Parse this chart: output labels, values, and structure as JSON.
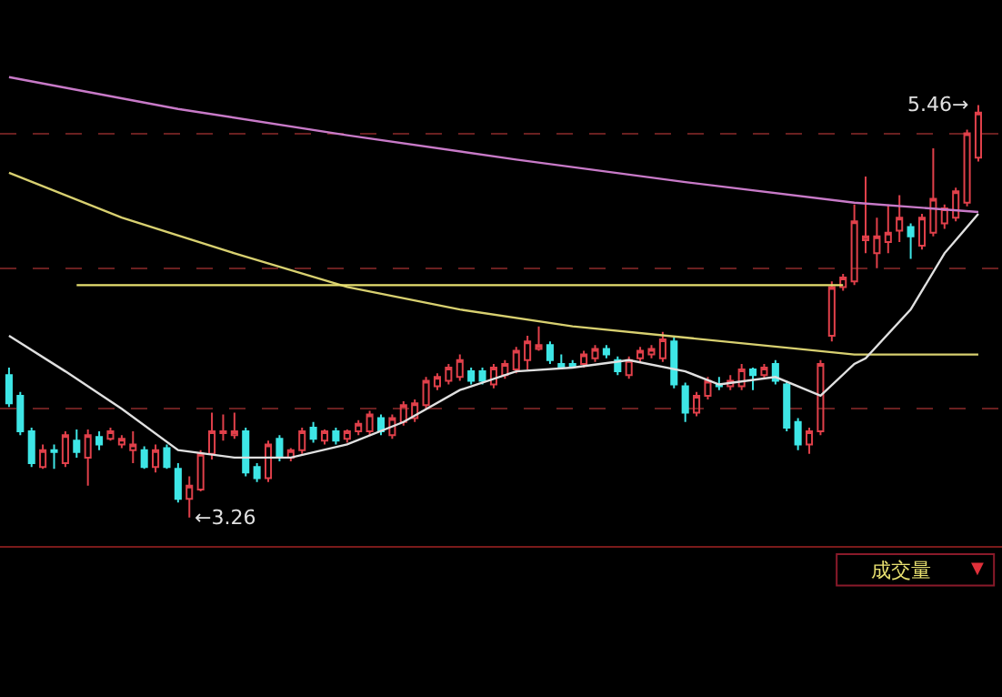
{
  "chart_data": {
    "type": "candlestick",
    "categories": [
      null,
      null,
      null,
      null,
      null,
      null,
      null,
      null,
      null,
      null,
      null,
      null,
      null,
      null,
      null,
      null,
      null,
      null,
      null,
      null,
      null,
      null,
      null,
      null,
      null,
      null,
      null,
      null,
      null,
      null,
      null,
      null,
      null,
      null,
      null,
      null,
      null,
      null,
      null,
      null,
      null,
      null,
      null,
      null,
      null,
      null,
      null,
      null,
      null,
      null,
      null,
      null,
      null,
      null,
      null,
      null,
      null,
      null,
      null,
      null,
      null,
      null,
      null,
      null,
      null,
      null,
      null,
      null,
      null,
      null,
      null,
      null,
      null,
      null,
      null,
      null,
      null,
      null,
      null,
      null,
      null,
      null,
      null,
      null,
      null,
      null,
      null
    ],
    "ohlc": [
      [
        4.02,
        4.06,
        3.85,
        3.87
      ],
      [
        3.91,
        3.93,
        3.7,
        3.72
      ],
      [
        3.72,
        3.74,
        3.53,
        3.55
      ],
      [
        3.53,
        3.65,
        3.52,
        3.62
      ],
      [
        3.62,
        3.65,
        3.52,
        3.61
      ],
      [
        3.55,
        3.72,
        3.53,
        3.7
      ],
      [
        3.67,
        3.73,
        3.58,
        3.61
      ],
      [
        3.58,
        3.73,
        3.43,
        3.7
      ],
      [
        3.69,
        3.72,
        3.62,
        3.65
      ],
      [
        3.68,
        3.74,
        3.67,
        3.72
      ],
      [
        3.65,
        3.7,
        3.63,
        3.68
      ],
      [
        3.62,
        3.72,
        3.55,
        3.65
      ],
      [
        3.62,
        3.64,
        3.52,
        3.53
      ],
      [
        3.53,
        3.65,
        3.5,
        3.62
      ],
      [
        3.63,
        3.65,
        3.52,
        3.53
      ],
      [
        3.52,
        3.55,
        3.34,
        3.36
      ],
      [
        3.36,
        3.48,
        3.26,
        3.43
      ],
      [
        3.41,
        3.62,
        3.4,
        3.6
      ],
      [
        3.6,
        3.82,
        3.57,
        3.72
      ],
      [
        3.71,
        3.81,
        3.67,
        3.72
      ],
      [
        3.7,
        3.82,
        3.68,
        3.72
      ],
      [
        3.72,
        3.74,
        3.48,
        3.5
      ],
      [
        3.53,
        3.55,
        3.45,
        3.47
      ],
      [
        3.47,
        3.67,
        3.45,
        3.65
      ],
      [
        3.68,
        3.7,
        3.56,
        3.58
      ],
      [
        3.58,
        3.63,
        3.56,
        3.62
      ],
      [
        3.62,
        3.74,
        3.6,
        3.72
      ],
      [
        3.74,
        3.77,
        3.66,
        3.68
      ],
      [
        3.67,
        3.73,
        3.65,
        3.72
      ],
      [
        3.72,
        3.74,
        3.65,
        3.67
      ],
      [
        3.68,
        3.73,
        3.66,
        3.72
      ],
      [
        3.72,
        3.78,
        3.7,
        3.76
      ],
      [
        3.72,
        3.83,
        3.7,
        3.81
      ],
      [
        3.79,
        3.81,
        3.7,
        3.72
      ],
      [
        3.7,
        3.81,
        3.68,
        3.79
      ],
      [
        3.77,
        3.88,
        3.75,
        3.86
      ],
      [
        3.79,
        3.89,
        3.77,
        3.87
      ],
      [
        3.86,
        4.01,
        3.84,
        3.99
      ],
      [
        3.96,
        4.03,
        3.94,
        4.01
      ],
      [
        3.99,
        4.08,
        3.97,
        4.06
      ],
      [
        4.01,
        4.13,
        3.99,
        4.1
      ],
      [
        4.04,
        4.06,
        3.97,
        3.99
      ],
      [
        4.04,
        4.06,
        3.97,
        3.99
      ],
      [
        3.97,
        4.08,
        3.95,
        4.06
      ],
      [
        4.02,
        4.1,
        4.0,
        4.08
      ],
      [
        4.05,
        4.17,
        4.03,
        4.15
      ],
      [
        4.1,
        4.23,
        4.05,
        4.2
      ],
      [
        4.16,
        4.28,
        4.15,
        4.18
      ],
      [
        4.18,
        4.2,
        4.08,
        4.1
      ],
      [
        4.08,
        4.13,
        4.05,
        4.06
      ],
      [
        4.08,
        4.1,
        4.06,
        4.07
      ],
      [
        4.08,
        4.15,
        4.06,
        4.13
      ],
      [
        4.11,
        4.18,
        4.09,
        4.16
      ],
      [
        4.16,
        4.18,
        4.11,
        4.13
      ],
      [
        4.1,
        4.12,
        4.02,
        4.04
      ],
      [
        4.02,
        4.12,
        4.0,
        4.1
      ],
      [
        4.11,
        4.17,
        4.09,
        4.15
      ],
      [
        4.13,
        4.18,
        4.11,
        4.16
      ],
      [
        4.11,
        4.25,
        4.09,
        4.21
      ],
      [
        4.2,
        4.22,
        3.95,
        3.97
      ],
      [
        3.96,
        3.98,
        3.77,
        3.82
      ],
      [
        3.82,
        3.93,
        3.8,
        3.91
      ],
      [
        3.91,
        4.01,
        3.89,
        3.99
      ],
      [
        3.97,
        4.01,
        3.94,
        3.96
      ],
      [
        3.96,
        4.02,
        3.94,
        3.99
      ],
      [
        3.96,
        4.08,
        3.94,
        4.05
      ],
      [
        4.05,
        4.06,
        3.94,
        4.02
      ],
      [
        4.02,
        4.08,
        4.0,
        4.06
      ],
      [
        4.08,
        4.1,
        3.97,
        3.99
      ],
      [
        3.97,
        3.99,
        3.72,
        3.74
      ],
      [
        3.77,
        3.79,
        3.62,
        3.65
      ],
      [
        3.65,
        3.74,
        3.6,
        3.72
      ],
      [
        3.72,
        4.1,
        3.7,
        4.08
      ],
      [
        4.23,
        4.52,
        4.2,
        4.49
      ],
      [
        4.49,
        4.56,
        4.47,
        4.54
      ],
      [
        4.52,
        4.93,
        4.5,
        4.84
      ],
      [
        4.74,
        5.08,
        4.67,
        4.76
      ],
      [
        4.67,
        4.86,
        4.59,
        4.76
      ],
      [
        4.73,
        4.93,
        4.67,
        4.78
      ],
      [
        4.79,
        4.98,
        4.73,
        4.86
      ],
      [
        4.81,
        4.83,
        4.64,
        4.76
      ],
      [
        4.71,
        4.88,
        4.69,
        4.86
      ],
      [
        4.78,
        5.23,
        4.76,
        4.96
      ],
      [
        4.83,
        4.93,
        4.8,
        4.91
      ],
      [
        4.86,
        5.02,
        4.84,
        5.0
      ],
      [
        4.94,
        5.33,
        4.92,
        5.31
      ],
      [
        5.18,
        5.46,
        5.16,
        5.42
      ]
    ],
    "colors": [
      "#3ee6e6",
      "#3ee6e6",
      "#3ee6e6",
      "#e0404a",
      "#3ee6e6",
      "#e0404a",
      "#3ee6e6",
      "#e0404a",
      "#3ee6e6",
      "#e0404a",
      "#e0404a",
      "#e0404a",
      "#3ee6e6",
      "#e0404a",
      "#3ee6e6",
      "#3ee6e6",
      "#e0404a",
      "#e0404a",
      "#e0404a",
      "#e0404a",
      "#e0404a",
      "#3ee6e6",
      "#3ee6e6",
      "#e0404a",
      "#3ee6e6",
      "#e0404a",
      "#e0404a",
      "#3ee6e6",
      "#e0404a",
      "#3ee6e6",
      "#e0404a",
      "#e0404a",
      "#e0404a",
      "#3ee6e6",
      "#e0404a",
      "#e0404a",
      "#e0404a",
      "#e0404a",
      "#e0404a",
      "#e0404a",
      "#e0404a",
      "#3ee6e6",
      "#3ee6e6",
      "#e0404a",
      "#e0404a",
      "#e0404a",
      "#e0404a",
      "#e0404a",
      "#3ee6e6",
      "#3ee6e6",
      "#3ee6e6",
      "#e0404a",
      "#e0404a",
      "#3ee6e6",
      "#3ee6e6",
      "#e0404a",
      "#e0404a",
      "#e0404a",
      "#e0404a",
      "#3ee6e6",
      "#3ee6e6",
      "#e0404a",
      "#e0404a",
      "#3ee6e6",
      "#e0404a",
      "#e0404a",
      "#3ee6e6",
      "#e0404a",
      "#3ee6e6",
      "#3ee6e6",
      "#3ee6e6",
      "#e0404a",
      "#e0404a",
      "#e0404a",
      "#e0404a",
      "#e0404a",
      "#e0404a",
      "#e0404a",
      "#e0404a",
      "#e0404a",
      "#3ee6e6",
      "#e0404a",
      "#e0404a",
      "#e0404a",
      "#e0404a",
      "#e0404a",
      "#e0404a"
    ],
    "series": [
      {
        "type": "line",
        "color": "#c87ac8",
        "values": [
          5.61,
          null,
          null,
          null,
          null,
          null,
          null,
          null,
          null,
          null,
          null,
          null,
          null,
          null,
          null,
          5.44,
          null,
          null,
          null,
          null,
          null,
          null,
          null,
          null,
          null,
          null,
          null,
          null,
          null,
          null,
          5.3,
          null,
          null,
          null,
          null,
          null,
          null,
          null,
          null,
          null,
          null,
          null,
          null,
          null,
          null,
          5.17,
          null,
          null,
          null,
          null,
          null,
          null,
          null,
          null,
          null,
          null,
          null,
          null,
          null,
          null,
          5.05,
          null,
          null,
          null,
          null,
          null,
          null,
          null,
          null,
          null,
          null,
          null,
          null,
          null,
          null,
          4.94,
          null,
          null,
          null,
          null,
          null,
          null,
          null,
          null,
          null,
          null,
          4.89
        ]
      },
      {
        "type": "line",
        "color": "#d8d070",
        "values": [
          5.1,
          null,
          null,
          null,
          null,
          null,
          null,
          null,
          null,
          null,
          4.86,
          null,
          null,
          null,
          null,
          null,
          null,
          null,
          null,
          null,
          4.67,
          null,
          null,
          null,
          null,
          null,
          null,
          null,
          null,
          null,
          4.49,
          null,
          null,
          null,
          null,
          null,
          null,
          null,
          null,
          null,
          4.37,
          null,
          null,
          null,
          null,
          null,
          null,
          null,
          null,
          null,
          4.28,
          null,
          null,
          null,
          null,
          null,
          null,
          null,
          null,
          null,
          4.22,
          null,
          null,
          null,
          null,
          null,
          null,
          null,
          null,
          null,
          4.16,
          null,
          null,
          null,
          null,
          4.13,
          null,
          null,
          null,
          null,
          null,
          null,
          null,
          null,
          null,
          null,
          4.13
        ]
      },
      {
        "type": "line",
        "color": "#e0e0e0",
        "values": [
          4.23,
          null,
          null,
          null,
          null,
          4.04,
          null,
          null,
          null,
          null,
          3.84,
          null,
          null,
          null,
          null,
          3.62,
          null,
          null,
          null,
          null,
          3.58,
          null,
          null,
          null,
          null,
          3.58,
          null,
          null,
          null,
          null,
          3.65,
          null,
          null,
          null,
          null,
          3.77,
          null,
          null,
          null,
          null,
          3.94,
          null,
          null,
          null,
          null,
          4.04,
          null,
          null,
          null,
          null,
          4.06,
          null,
          null,
          null,
          null,
          4.1,
          null,
          null,
          null,
          null,
          4.04,
          null,
          null,
          3.97,
          null,
          null,
          null,
          null,
          4.01,
          null,
          null,
          null,
          3.91,
          null,
          null,
          4.08,
          4.11,
          null,
          null,
          null,
          4.37,
          null,
          null,
          4.67,
          null,
          null,
          4.88
        ]
      },
      {
        "type": "line",
        "color": "#e8e070",
        "values": [
          null,
          null,
          null,
          null,
          null,
          null,
          4.5,
          null,
          null,
          null,
          null,
          null,
          null,
          null,
          null,
          null,
          null,
          null,
          null,
          null,
          null,
          null,
          null,
          null,
          null,
          null,
          null,
          null,
          null,
          null,
          null,
          null,
          null,
          null,
          null,
          null,
          null,
          null,
          null,
          null,
          null,
          null,
          null,
          null,
          null,
          null,
          null,
          null,
          null,
          null,
          null,
          null,
          null,
          null,
          null,
          null,
          null,
          null,
          null,
          null,
          null,
          null,
          null,
          null,
          null,
          null,
          null,
          null,
          null,
          null,
          null,
          null,
          null,
          null,
          4.5,
          null,
          null,
          null,
          null,
          null,
          null,
          null,
          null,
          null,
          null,
          null,
          null
        ]
      }
    ],
    "yticks": [
      {
        "value": 3.84,
        "label": null
      },
      {
        "value": 4.59,
        "label": null
      },
      {
        "value": 5.31,
        "label": null
      }
    ],
    "grid": "y",
    "annotations": [
      "5.46→",
      "←3.26",
      "成交量",
      "▼"
    ]
  }
}
